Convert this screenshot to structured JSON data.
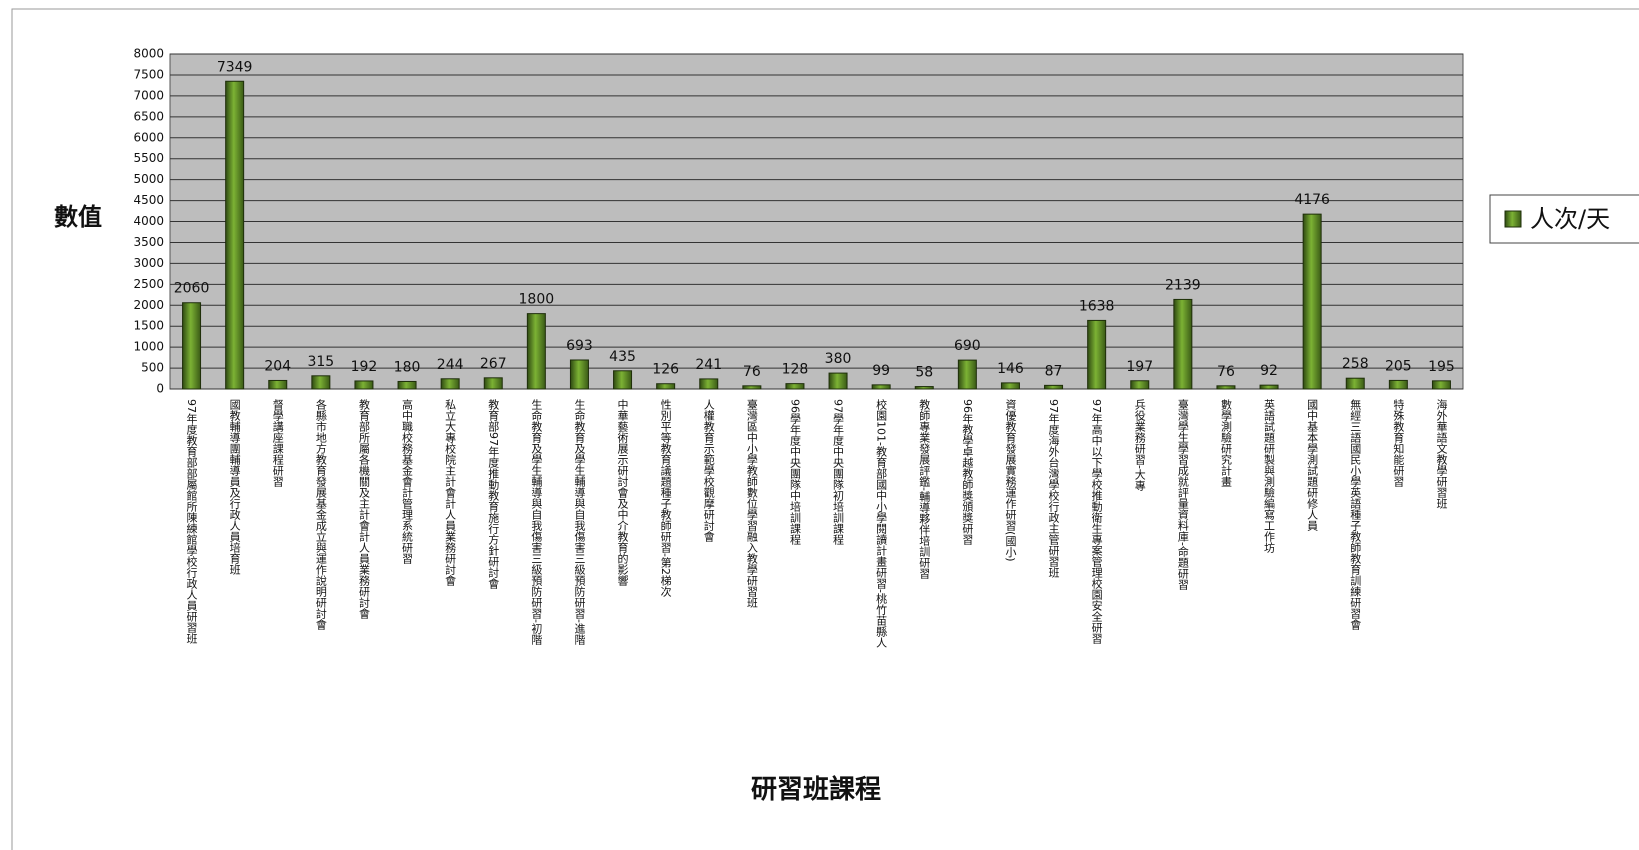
{
  "chart_data": {
    "type": "bar",
    "xlabel": "研習班課程",
    "ylabel": "數值",
    "categories": [
      "97年度教育部部屬館所陳練館學校行政人員研習班",
      "國教輔導團輔導員及行政人員培育班",
      "督學講座課程研習",
      "各縣市地方教育發展基金成立與運作說明研討會",
      "教育部所屬各機關及主計會計人員業務研討會",
      "高中職校務基金會計管理系統研習",
      "私立大專校院主計會計人員業務研討會",
      "教育部97年度推動教育施行方針研討會",
      "生命教育及學生輔導與自我傷害三級預防研習-初階",
      "生命教育及學生輔導與自我傷害三級預防研習-進階",
      "中華藝術展示研討會及中介教育的影響",
      "性別平等教育議題種子教師研習-第2梯次",
      "人權教育示範學校觀摩研討會",
      "臺灣區中小學教師數位學習融入教學研習班",
      "96學年度中央團隊中培訓課程",
      "97學年度中央團隊初培訓課程",
      "校園101-教育部國中小學閱讀計畫研習-桃竹苗縣人",
      "教師專業發展評鑑-輔導夥伴培訓研習",
      "96年教學卓越教師獎頒獎研習",
      "資優教育發展實務運作研習(國小)",
      "97年度海外台灣學校行政主管研習班",
      "97年高中以下學校推動衛生專案管理校園安全研習",
      "兵役業務研習-大專",
      "臺灣學生學習成就評量資料庫-命題研習",
      "數學測驗研究計畫",
      "英語試題研製與測驗編寫工作坊",
      "國中基本學測試題研修人員",
      "無經三語國民小學英語種子教師教育訓練研習會",
      "特殊教育知能研習",
      "海外華語文教學研習班"
    ],
    "series": [
      {
        "name": "人次/天",
        "color": "#7cb234",
        "values": [
          2060,
          7349,
          204,
          315,
          192,
          180,
          244,
          267,
          1800,
          693,
          435,
          126,
          241,
          76,
          128,
          380,
          99,
          58,
          690,
          146,
          87,
          1638,
          197,
          2139,
          76,
          92,
          4176,
          258,
          205,
          195
        ]
      }
    ],
    "ylim": [
      0,
      8000
    ],
    "yticks": [
      0,
      500,
      1000,
      1500,
      2000,
      2500,
      3000,
      3500,
      4000,
      4500,
      5000,
      5500,
      6000,
      6500,
      7000,
      7500,
      8000
    ],
    "grid": true,
    "legend": "right"
  }
}
